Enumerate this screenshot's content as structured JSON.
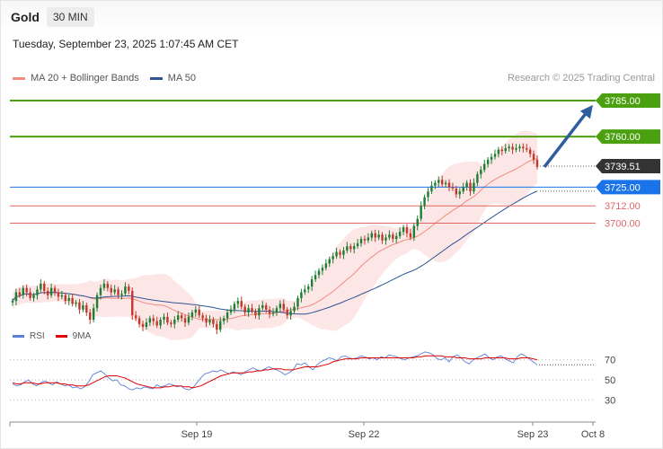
{
  "header": {
    "symbol": "Gold",
    "timeframe": "30 MIN"
  },
  "datetime": "Tuesday, September 23, 2025 1:07:45 AM CET",
  "credit": "Research © 2025 Trading Central",
  "legend": [
    {
      "label": "MA 20 + Bollinger Bands",
      "color": "#f28b82"
    },
    {
      "label": "MA 50",
      "color": "#2f5597"
    }
  ],
  "rsi_legend": [
    {
      "label": "RSI",
      "color": "#5b7fd6"
    },
    {
      "label": "9MA",
      "color": "#e00000"
    }
  ],
  "colors": {
    "bull": "#1e7e34",
    "bear": "#c0392b",
    "target": "#4aa00f",
    "pivot": "#1a73e8",
    "support": "#e06666",
    "band": "#fde0e0",
    "last": "#333333",
    "arrow": "#2f5e9e"
  },
  "chart_data": {
    "type": "candlestick",
    "instrument": "Gold",
    "interval": "30 MIN",
    "ylim": [
      3633,
      3795
    ],
    "x_ticks": [
      "Sep 19",
      "Sep 22",
      "Sep 23",
      "Oct 8"
    ],
    "last_price": "3739.51",
    "levels": [
      {
        "value": 3785.0,
        "label": "3785.00",
        "kind": "target"
      },
      {
        "value": 3760.0,
        "label": "3760.00",
        "kind": "target"
      },
      {
        "value": 3725.0,
        "label": "3725.00",
        "kind": "pivot"
      },
      {
        "value": 3712.0,
        "label": "3712.00",
        "kind": "support"
      },
      {
        "value": 3700.0,
        "label": "3700.00",
        "kind": "support"
      }
    ],
    "forecast_arrow": {
      "from": 3739,
      "to": 3782
    },
    "closes": [
      3646,
      3652,
      3650,
      3655,
      3652,
      3648,
      3650,
      3654,
      3658,
      3653,
      3650,
      3655,
      3652,
      3649,
      3650,
      3646,
      3648,
      3644,
      3645,
      3640,
      3643,
      3638,
      3633,
      3641,
      3650,
      3655,
      3658,
      3655,
      3652,
      3654,
      3650,
      3651,
      3656,
      3653,
      3636,
      3634,
      3630,
      3628,
      3631,
      3634,
      3632,
      3629,
      3633,
      3635,
      3631,
      3630,
      3633,
      3636,
      3634,
      3631,
      3635,
      3638,
      3640,
      3636,
      3634,
      3631,
      3633,
      3630,
      3626,
      3632,
      3634,
      3638,
      3640,
      3644,
      3646,
      3642,
      3638,
      3641,
      3639,
      3636,
      3641,
      3643,
      3640,
      3637,
      3638,
      3641,
      3644,
      3640,
      3636,
      3639,
      3642,
      3648,
      3652,
      3654,
      3656,
      3661,
      3664,
      3667,
      3669,
      3672,
      3675,
      3677,
      3680,
      3678,
      3681,
      3684,
      3682,
      3684,
      3686,
      3689,
      3688,
      3690,
      3693,
      3690,
      3692,
      3688,
      3690,
      3692,
      3689,
      3691,
      3694,
      3697,
      3693,
      3690,
      3698,
      3703,
      3712,
      3718,
      3722,
      3726,
      3728,
      3730,
      3727,
      3728,
      3725,
      3724,
      3720,
      3722,
      3725,
      3728,
      3722,
      3728,
      3734,
      3737,
      3741,
      3744,
      3746,
      3748,
      3751,
      3750,
      3752,
      3753,
      3751,
      3752,
      3753,
      3752,
      3751,
      3748,
      3744,
      3739
    ],
    "rsi_ylim": [
      15,
      85
    ],
    "rsi_ticks": [
      70,
      50,
      30
    ],
    "rsi": [
      46,
      44,
      45,
      48,
      50,
      46,
      44,
      47,
      49,
      47,
      45,
      48,
      46,
      44,
      45,
      42,
      43,
      41,
      43,
      48,
      55,
      57,
      59,
      56,
      52,
      49,
      50,
      45,
      44,
      41,
      40,
      42,
      41,
      43,
      42,
      41,
      45,
      43,
      44,
      46,
      45,
      43,
      44,
      41,
      40,
      42,
      47,
      52,
      56,
      57,
      59,
      58,
      60,
      58,
      56,
      58,
      57,
      55,
      58,
      60,
      62,
      60,
      59,
      61,
      63,
      61,
      60,
      58,
      55,
      57,
      60,
      66,
      65,
      67,
      63,
      60,
      65,
      68,
      70,
      72,
      71,
      69,
      73,
      74,
      72,
      71,
      72,
      74,
      73,
      71,
      72,
      70,
      73,
      72,
      75,
      74,
      73,
      71,
      70,
      72,
      73,
      74,
      76,
      78,
      77,
      75,
      71,
      70,
      72,
      68,
      73,
      75,
      72,
      68,
      66,
      70,
      72,
      74,
      76,
      72,
      70,
      73,
      74,
      71,
      69,
      67,
      73,
      76,
      74,
      71,
      68,
      65
    ],
    "rsi_ma": [
      47,
      46,
      46,
      47,
      47,
      47,
      46,
      46,
      47,
      47,
      47,
      47,
      46,
      46,
      45,
      45,
      44,
      44,
      44,
      45,
      47,
      49,
      51,
      53,
      54,
      54,
      54,
      53,
      52,
      50,
      48,
      46,
      45,
      44,
      43,
      42,
      42,
      42,
      43,
      43,
      44,
      44,
      44,
      43,
      43,
      42,
      43,
      44,
      46,
      48,
      50,
      52,
      54,
      55,
      56,
      57,
      57,
      57,
      57,
      58,
      58,
      59,
      59,
      60,
      60,
      61,
      61,
      61,
      60,
      60,
      60,
      61,
      62,
      63,
      63,
      63,
      63,
      64,
      65,
      66,
      68,
      69,
      70,
      71,
      71,
      71,
      71,
      72,
      72,
      72,
      72,
      72,
      72,
      72,
      72,
      72,
      72,
      72,
      72,
      72,
      72,
      73,
      73,
      74,
      74,
      74,
      74,
      74,
      73,
      73,
      73,
      72,
      72,
      72,
      71,
      71,
      71,
      71,
      72,
      72,
      72,
      72,
      72,
      72,
      71,
      71,
      71,
      72,
      72,
      72,
      71,
      70
    ]
  }
}
